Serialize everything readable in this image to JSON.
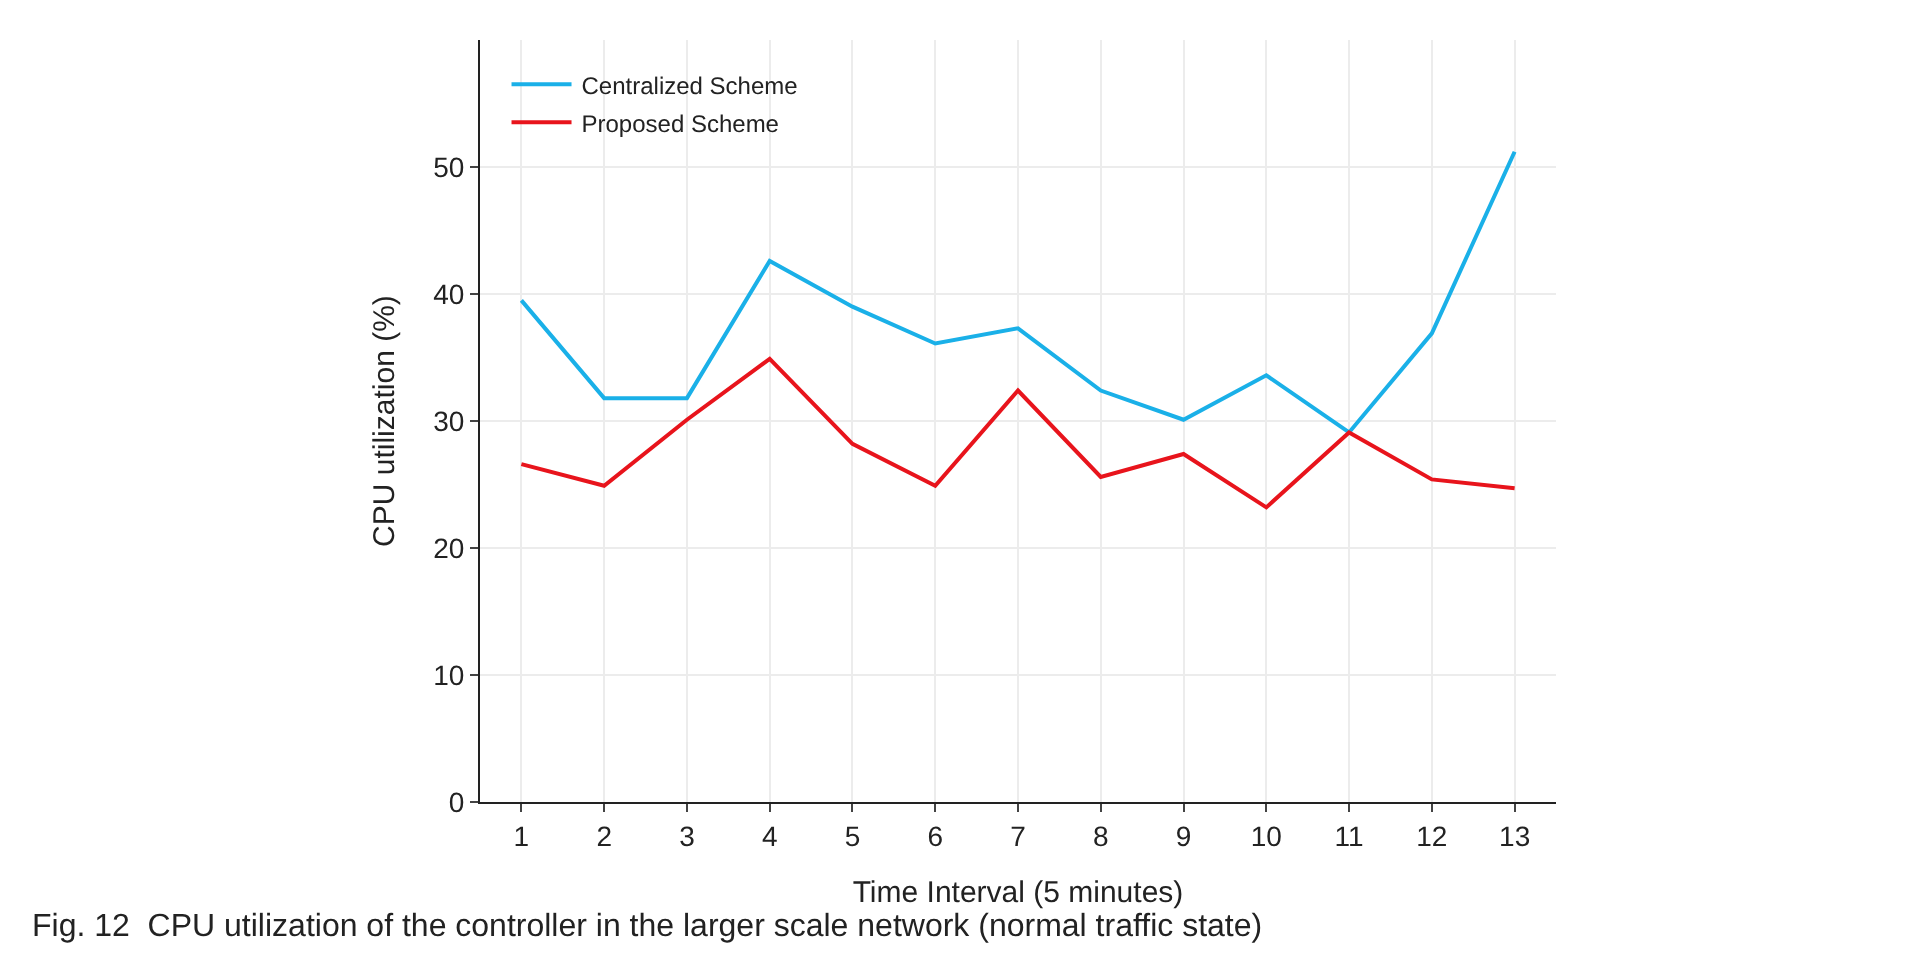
{
  "chart_data": {
    "type": "line",
    "xlabel": "Time Interval (5 minutes)",
    "ylabel": "CPU utilization (%)",
    "x": [
      1,
      2,
      3,
      4,
      5,
      6,
      7,
      8,
      9,
      10,
      11,
      12,
      13
    ],
    "series": [
      {
        "name": "Centralized Scheme",
        "color": "#1ab0e8",
        "values": [
          39.5,
          31.8,
          31.8,
          42.6,
          39.0,
          36.1,
          37.3,
          32.4,
          30.1,
          33.6,
          29.1,
          36.9,
          51.2
        ]
      },
      {
        "name": "Proposed Scheme",
        "color": "#e8141c",
        "values": [
          26.6,
          24.9,
          30.1,
          34.9,
          28.2,
          24.9,
          32.4,
          25.6,
          27.4,
          23.2,
          29.1,
          25.4,
          24.7
        ]
      }
    ],
    "xlim": [
      0.5,
      13.5
    ],
    "xticks": [
      1,
      2,
      3,
      4,
      5,
      6,
      7,
      8,
      9,
      10,
      11,
      12,
      13
    ],
    "ylim": [
      0,
      60
    ],
    "yticks": [
      0,
      10,
      20,
      30,
      40,
      50
    ],
    "grid": true,
    "legend": "top left",
    "marker": "none",
    "line_style": "solid",
    "annotations": [
      "Fig. 12  CPU utilization of the controller in the larger scale network (normal traffic state)"
    ]
  }
}
